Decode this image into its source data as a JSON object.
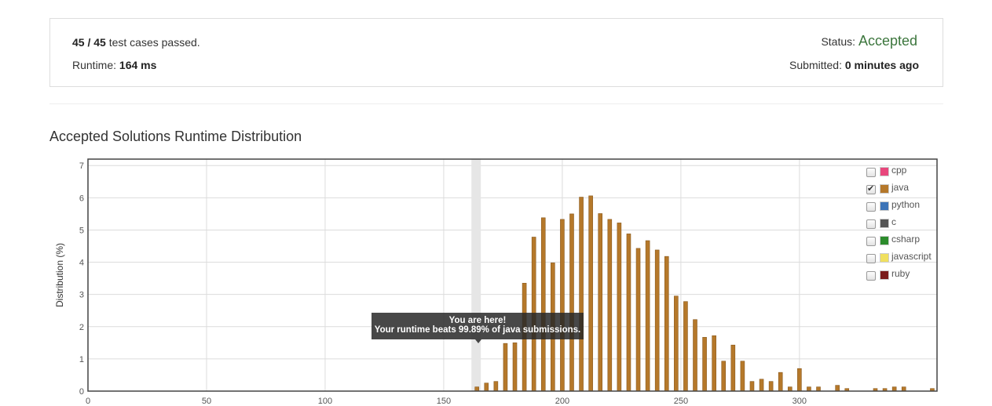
{
  "summary": {
    "passed": "45",
    "separator": "/",
    "total": "45",
    "passed_suffix": "test cases passed.",
    "runtime_label": "Runtime:",
    "runtime_value": "164 ms",
    "status_label": "Status:",
    "status_value": "Accepted",
    "submitted_label": "Submitted:",
    "submitted_value": "0 minutes ago"
  },
  "section_title": "Accepted Solutions Runtime Distribution",
  "tooltip": {
    "line1": "You are here!",
    "line2": "Your runtime beats 99.89% of java submissions."
  },
  "legend": [
    {
      "label": "cpp",
      "color": "#e8467c",
      "checked": false
    },
    {
      "label": "java",
      "color": "#b5782a",
      "checked": true
    },
    {
      "label": "python",
      "color": "#3d74b7",
      "checked": false
    },
    {
      "label": "c",
      "color": "#555555",
      "checked": false
    },
    {
      "label": "csharp",
      "color": "#2c8c2c",
      "checked": false
    },
    {
      "label": "javascript",
      "color": "#f0e060",
      "checked": false
    },
    {
      "label": "ruby",
      "color": "#7a1c1c",
      "checked": false
    }
  ],
  "chart_data": {
    "type": "bar",
    "title": "Accepted Solutions Runtime Distribution",
    "xlabel": "",
    "ylabel": "Distribution (%)",
    "xlim": [
      0,
      358
    ],
    "ylim": [
      0,
      7.2
    ],
    "x_ticks": [
      0,
      50,
      100,
      150,
      200,
      250,
      300
    ],
    "y_ticks": [
      0,
      1,
      2,
      3,
      4,
      5,
      6,
      7
    ],
    "highlight_x": 164,
    "series": [
      {
        "name": "java",
        "color": "#b5782a",
        "x": [
          164,
          168,
          172,
          176,
          180,
          184,
          188,
          192,
          196,
          200,
          204,
          208,
          212,
          216,
          220,
          224,
          228,
          232,
          236,
          240,
          244,
          248,
          252,
          256,
          260,
          264,
          268,
          272,
          276,
          280,
          284,
          288,
          292,
          296,
          300,
          304,
          308,
          316,
          320,
          332,
          336,
          340,
          344,
          356
        ],
        "values": [
          0.13,
          0.25,
          0.3,
          1.48,
          1.5,
          3.35,
          4.78,
          5.38,
          3.98,
          5.33,
          5.5,
          6.02,
          6.06,
          5.51,
          5.33,
          5.22,
          4.88,
          4.43,
          4.67,
          4.38,
          4.18,
          2.95,
          2.78,
          2.22,
          1.67,
          1.72,
          0.93,
          1.43,
          0.93,
          0.3,
          0.37,
          0.3,
          0.58,
          0.13,
          0.7,
          0.13,
          0.13,
          0.18,
          0.08,
          0.08,
          0.08,
          0.13,
          0.13,
          0.08
        ]
      }
    ]
  }
}
